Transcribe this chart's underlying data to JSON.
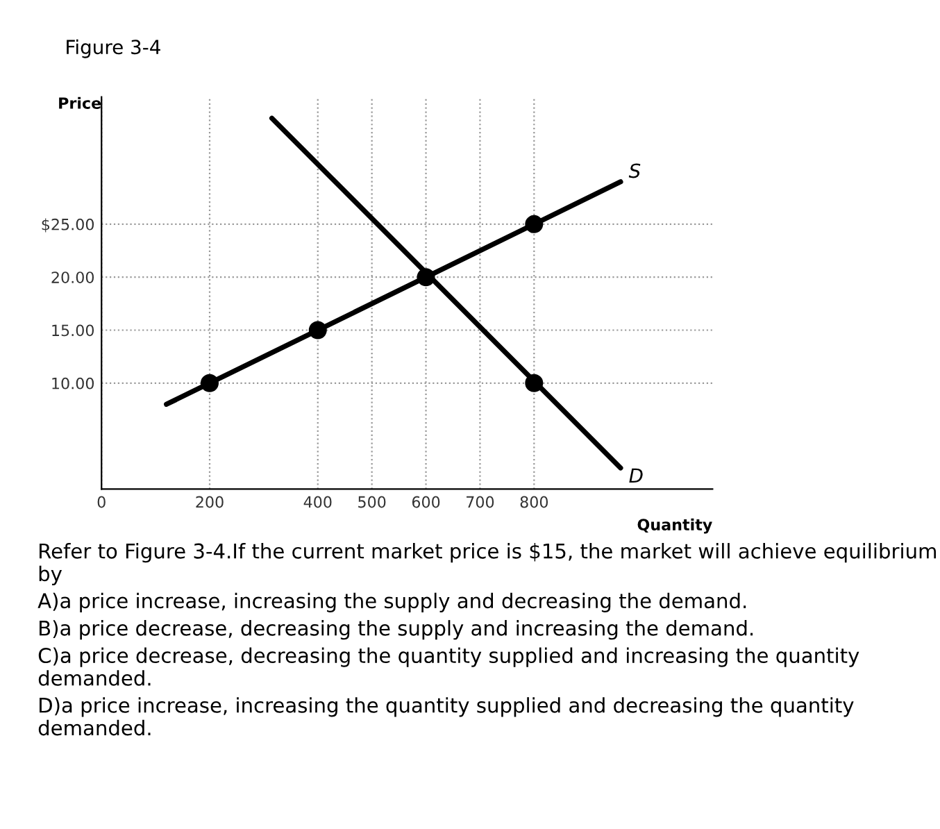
{
  "chart_data": {
    "type": "line",
    "title": "Figure 3-4",
    "xlabel": "Quantity",
    "ylabel": "Price",
    "xlim": [
      0,
      1130
    ],
    "ylim": [
      0,
      37
    ],
    "xticks": [
      0,
      200,
      400,
      500,
      600,
      700,
      800
    ],
    "yticks": [
      {
        "value": 10,
        "label": "10.00"
      },
      {
        "value": 15,
        "label": "15.00"
      },
      {
        "value": 20,
        "label": "20.00"
      },
      {
        "value": 25,
        "label": "$25.00"
      }
    ],
    "grid": true,
    "line_style": "solid",
    "legend": false,
    "series": [
      {
        "name": "S",
        "color": "#000000",
        "x": [
          120,
          960
        ],
        "values": [
          8,
          29
        ],
        "marker": "none"
      },
      {
        "name": "D",
        "color": "#000000",
        "x": [
          315,
          960
        ],
        "values": [
          35,
          2
        ],
        "marker": "none"
      },
      {
        "type": "scatter",
        "color": "#000000",
        "x": [
          200,
          400,
          600,
          800,
          800
        ],
        "values": [
          10,
          15,
          20,
          25,
          10
        ],
        "marker": "circle"
      }
    ],
    "annotations": [
      "Refer to Figure 3-4.If the current market price is $15, the market will achieve equilibrium by",
      "A)a price increase, increasing the supply and decreasing the demand.",
      "B)a price decrease, decreasing the supply and increasing the demand.",
      "C)a price decrease, decreasing the quantity supplied and increasing the quantity demanded.",
      "D)a price increase, increasing the quantity supplied and decreasing the quantity demanded."
    ]
  }
}
